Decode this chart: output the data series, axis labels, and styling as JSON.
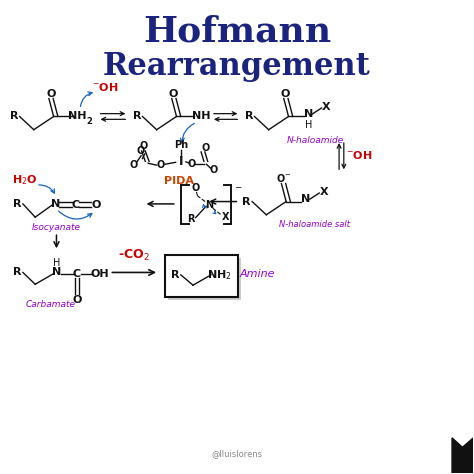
{
  "title_line1": "Hofmann",
  "title_line2": "Rearrangement",
  "title_color": "#1a237e",
  "bg_color": "#ffffff",
  "purple_color": "#9400D3",
  "red_color": "#cc0000",
  "blue_color": "#1565C0",
  "black_color": "#111111",
  "pida_color": "#cc4400",
  "credit": "@lluislorens",
  "bookmark_color": "#111111"
}
